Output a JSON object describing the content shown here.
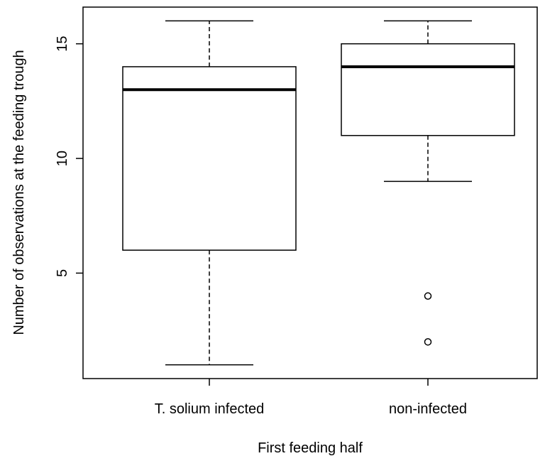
{
  "chart_data": {
    "type": "boxplot",
    "title": "",
    "xlabel": "First feeding half",
    "ylabel": "Number of observations at the feeding trough",
    "ylim": [
      0.4,
      16.6
    ],
    "yticks": [
      5,
      10,
      15
    ],
    "grid": false,
    "categories": [
      "T. solium infected",
      "non-infected"
    ],
    "boxes": [
      {
        "category": "T. solium infected",
        "whisker_low": 1,
        "q1": 6,
        "median": 13,
        "q3": 14,
        "whisker_high": 16,
        "outliers": []
      },
      {
        "category": "non-infected",
        "whisker_low": 9,
        "q1": 11,
        "median": 14,
        "q3": 15,
        "whisker_high": 16,
        "outliers": [
          4,
          2
        ]
      }
    ]
  }
}
